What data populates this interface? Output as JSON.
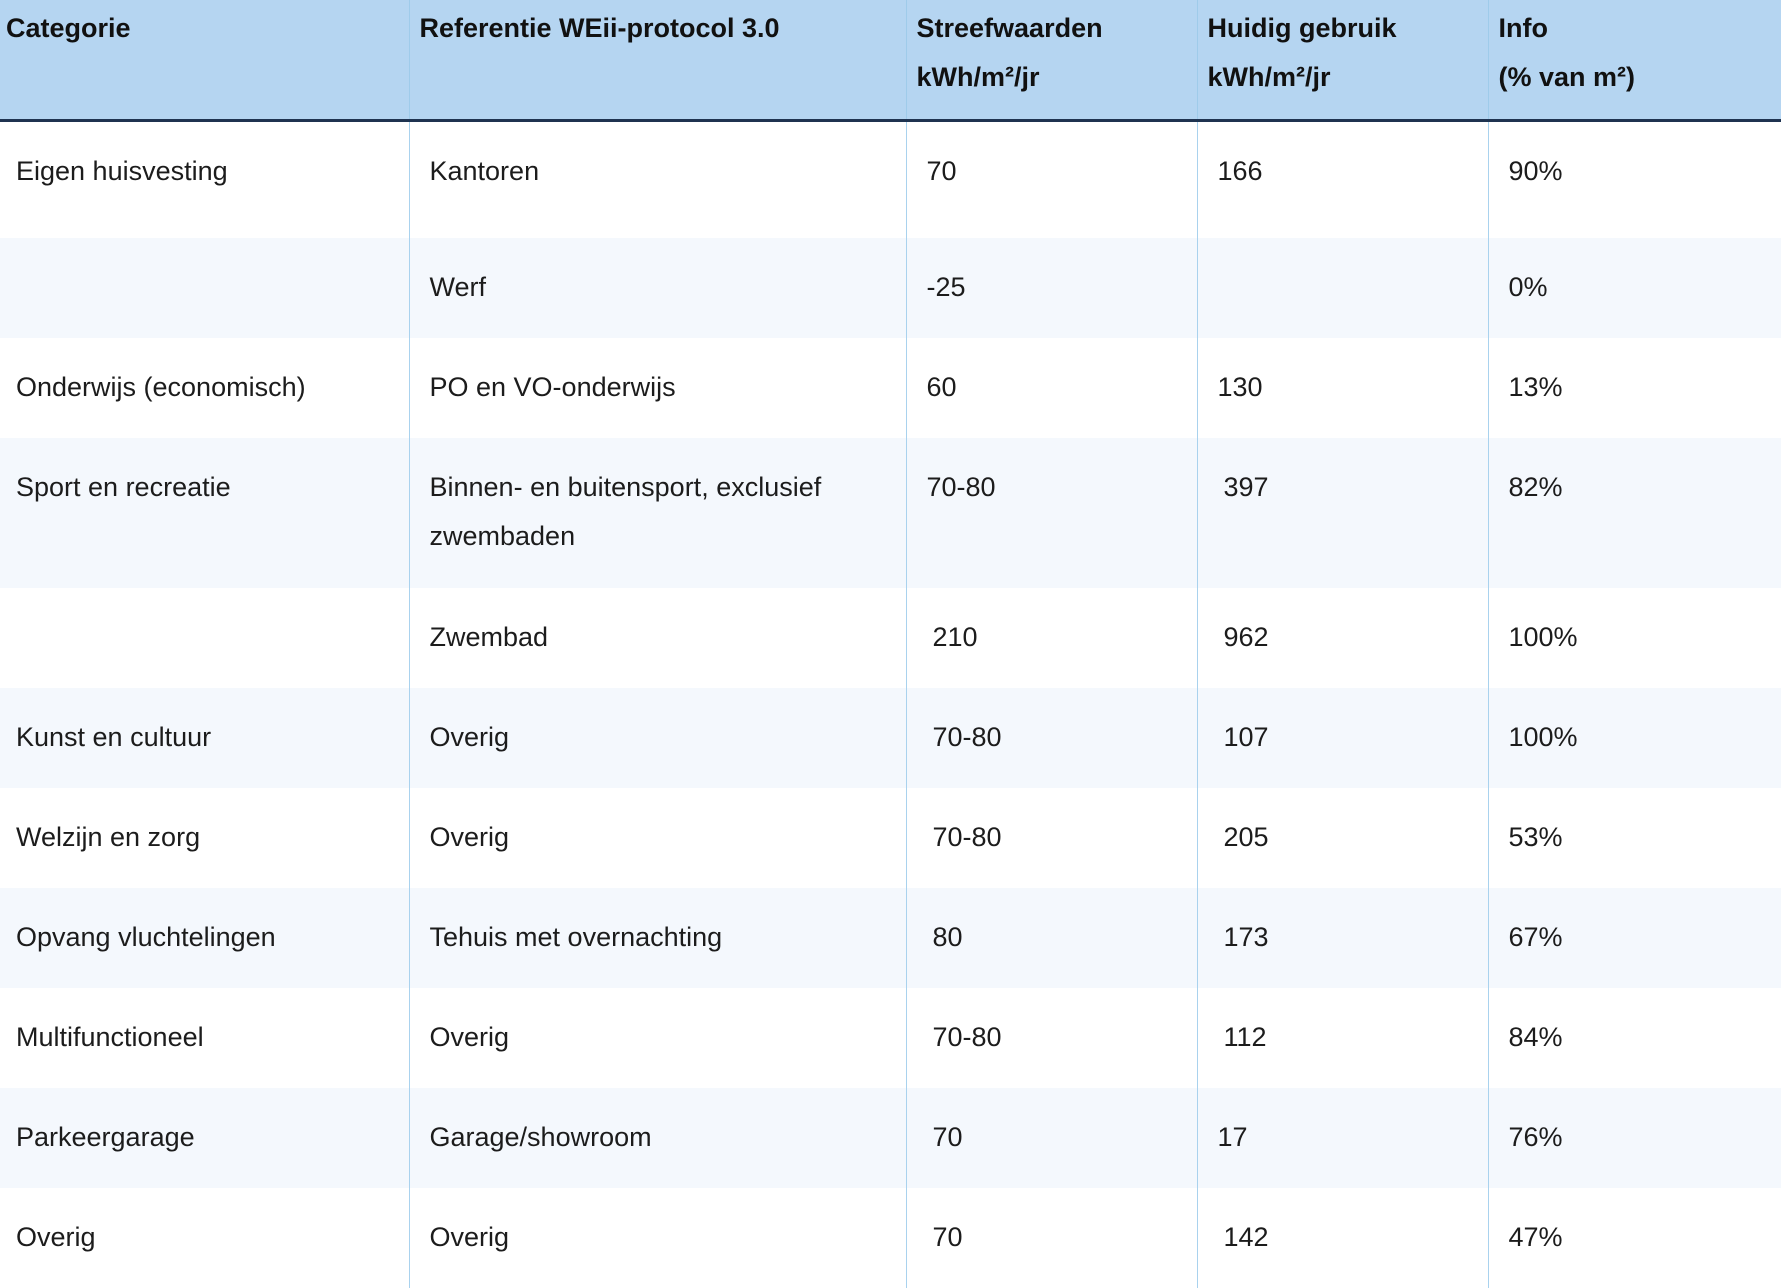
{
  "table": {
    "header": [
      [
        "Categorie"
      ],
      [
        "Referentie WEii-protocol 3.0"
      ],
      [
        "Streefwaarden",
        "kWh/m²/jr"
      ],
      [
        "Huidig gebruik",
        "kWh/m²/jr"
      ],
      [
        "Info",
        "(% van m²)"
      ]
    ],
    "rows": [
      [
        "Eigen huisvesting",
        "Kantoren",
        "70",
        "166",
        "90%"
      ],
      [
        null,
        "Werf",
        "-25",
        null,
        "0%"
      ],
      [
        "Onderwijs (economisch)",
        "PO en VO-onderwijs",
        "60",
        "130",
        "13%"
      ],
      [
        "Sport en recreatie",
        "Binnen- en buitensport, exclusief zwembaden",
        "70-80",
        "397",
        "82%"
      ],
      [
        null,
        "Zwembad",
        "210",
        "962",
        "100%"
      ],
      [
        "Kunst en cultuur",
        "Overig",
        "70-80",
        "107",
        "100%"
      ],
      [
        "Welzijn en zorg",
        "Overig",
        "70-80",
        "205",
        "53%"
      ],
      [
        "Opvang vluchtelingen",
        "Tehuis met overnachting",
        "80",
        "173",
        "67%"
      ],
      [
        "Multifunctioneel",
        "Overig",
        "70-80",
        "112",
        "84%"
      ],
      [
        "Parkeergarage",
        "Garage/showroom",
        "70",
        "17",
        "76%"
      ],
      [
        "Overig",
        "Overig",
        "70",
        "142",
        "47%"
      ]
    ]
  }
}
